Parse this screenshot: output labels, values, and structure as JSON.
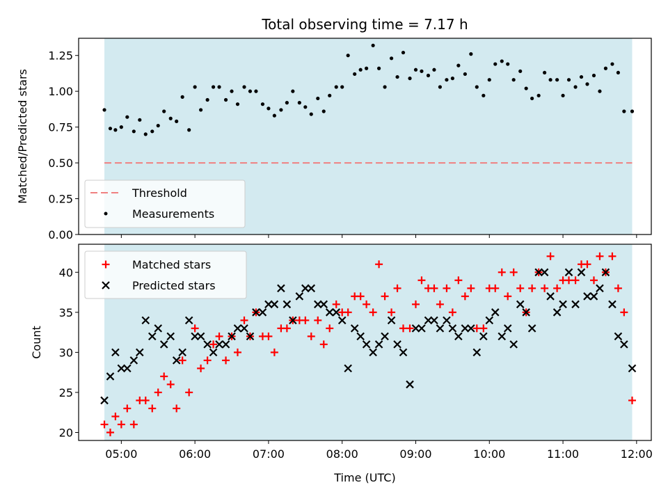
{
  "chart_data": [
    {
      "type": "scatter",
      "title": "Total observing time = 7.17 h",
      "ylabel": "Matched/Predicted stars",
      "xlabel": "",
      "ylim": [
        0,
        1.37
      ],
      "yticks": [
        "0.00",
        "0.25",
        "0.50",
        "0.75",
        "1.00",
        "1.25"
      ],
      "yticks_values": [
        0,
        0.25,
        0.5,
        0.75,
        1.0,
        1.25
      ],
      "xlim_hours": [
        4.42,
        12.2
      ],
      "shaded_span_hours": [
        4.77,
        11.94
      ],
      "shade_color": "#d3eaf0",
      "threshold": {
        "name": "Threshold",
        "value": 0.5,
        "color": "#f08080"
      },
      "legend": {
        "placement": "lower-left",
        "entries": [
          "Threshold",
          "Measurements"
        ]
      },
      "series": [
        {
          "name": "Measurements",
          "color": "#000000",
          "marker": "dot",
          "x": [
            4.77,
            4.85,
            4.92,
            5.0,
            5.08,
            5.17,
            5.25,
            5.33,
            5.42,
            5.5,
            5.58,
            5.67,
            5.75,
            5.83,
            5.92,
            6.0,
            6.08,
            6.17,
            6.25,
            6.33,
            6.42,
            6.5,
            6.58,
            6.67,
            6.75,
            6.83,
            6.92,
            7.0,
            7.08,
            7.17,
            7.25,
            7.33,
            7.42,
            7.5,
            7.58,
            7.67,
            7.75,
            7.83,
            7.92,
            8.0,
            8.08,
            8.17,
            8.25,
            8.33,
            8.42,
            8.5,
            8.58,
            8.67,
            8.75,
            8.83,
            8.92,
            9.0,
            9.08,
            9.17,
            9.25,
            9.33,
            9.42,
            9.5,
            9.58,
            9.67,
            9.75,
            9.83,
            9.92,
            10.0,
            10.08,
            10.17,
            10.25,
            10.33,
            10.42,
            10.5,
            10.58,
            10.67,
            10.75,
            10.83,
            10.92,
            11.0,
            11.08,
            11.17,
            11.25,
            11.33,
            11.42,
            11.5,
            11.58,
            11.67,
            11.75,
            11.83,
            11.94
          ],
          "y": [
            0.87,
            0.74,
            0.73,
            0.75,
            0.82,
            0.72,
            0.8,
            0.7,
            0.72,
            0.76,
            0.86,
            0.81,
            0.79,
            0.96,
            0.73,
            1.03,
            0.87,
            0.94,
            1.03,
            1.03,
            0.94,
            1.0,
            0.91,
            1.03,
            1.0,
            1.0,
            0.91,
            0.88,
            0.83,
            0.87,
            0.92,
            1.0,
            0.92,
            0.89,
            0.84,
            0.95,
            0.86,
            0.97,
            1.03,
            1.03,
            1.25,
            1.12,
            1.15,
            1.16,
            1.32,
            1.16,
            1.03,
            1.23,
            1.1,
            1.27,
            1.09,
            1.15,
            1.14,
            1.11,
            1.15,
            1.03,
            1.08,
            1.09,
            1.18,
            1.12,
            1.26,
            1.03,
            0.97,
            1.08,
            1.19,
            1.21,
            1.19,
            1.08,
            1.14,
            1.02,
            0.95,
            0.97,
            1.13,
            1.08,
            1.08,
            0.97,
            1.08,
            1.03,
            1.1,
            1.05,
            1.11,
            1.0,
            1.16,
            1.19,
            1.13,
            0.86,
            0.86
          ]
        }
      ]
    },
    {
      "type": "scatter",
      "title": "",
      "ylabel": "Count",
      "xlabel": "Time (UTC)",
      "ylim": [
        19,
        43.5
      ],
      "yticks": [
        "20",
        "25",
        "30",
        "35",
        "40"
      ],
      "yticks_values": [
        20,
        25,
        30,
        35,
        40
      ],
      "xlim_hours": [
        4.42,
        12.2
      ],
      "xticks": [
        "05:00",
        "06:00",
        "07:00",
        "08:00",
        "09:00",
        "10:00",
        "11:00",
        "12:00"
      ],
      "xticks_values": [
        5,
        6,
        7,
        8,
        9,
        10,
        11,
        12
      ],
      "shaded_span_hours": [
        4.77,
        11.94
      ],
      "shade_color": "#d3eaf0",
      "legend": {
        "placement": "upper-left",
        "entries": [
          "Matched stars",
          "Predicted stars"
        ]
      },
      "series": [
        {
          "name": "Matched stars",
          "color": "#ff0000",
          "marker": "plus",
          "x": [
            4.77,
            4.85,
            4.92,
            5.0,
            5.08,
            5.17,
            5.25,
            5.33,
            5.42,
            5.5,
            5.58,
            5.67,
            5.75,
            5.83,
            5.92,
            6.0,
            6.08,
            6.17,
            6.25,
            6.33,
            6.42,
            6.5,
            6.58,
            6.67,
            6.75,
            6.83,
            6.92,
            7.0,
            7.08,
            7.17,
            7.25,
            7.33,
            7.42,
            7.5,
            7.58,
            7.67,
            7.75,
            7.83,
            7.92,
            8.0,
            8.08,
            8.17,
            8.25,
            8.33,
            8.42,
            8.5,
            8.58,
            8.67,
            8.75,
            8.83,
            8.92,
            9.0,
            9.08,
            9.17,
            9.25,
            9.33,
            9.42,
            9.5,
            9.58,
            9.67,
            9.75,
            9.83,
            9.92,
            10.0,
            10.08,
            10.17,
            10.25,
            10.33,
            10.42,
            10.5,
            10.58,
            10.67,
            10.75,
            10.83,
            10.92,
            11.0,
            11.08,
            11.17,
            11.25,
            11.33,
            11.42,
            11.5,
            11.58,
            11.67,
            11.75,
            11.83,
            11.94
          ],
          "y": [
            21,
            20,
            22,
            21,
            23,
            21,
            24,
            24,
            23,
            25,
            27,
            26,
            23,
            29,
            25,
            33,
            28,
            29,
            31,
            32,
            29,
            32,
            30,
            34,
            32,
            35,
            32,
            32,
            30,
            33,
            33,
            34,
            34,
            34,
            32,
            34,
            31,
            33,
            36,
            35,
            35,
            37,
            37,
            36,
            35,
            41,
            37,
            35,
            38,
            33,
            33,
            36,
            39,
            38,
            38,
            36,
            38,
            35,
            39,
            37,
            38,
            33,
            33,
            38,
            38,
            40,
            37,
            40,
            38,
            35,
            38,
            40,
            38,
            42,
            38,
            39,
            39,
            39,
            41,
            41,
            39,
            42,
            40,
            42,
            38,
            35,
            24
          ]
        },
        {
          "name": "Predicted stars",
          "color": "#000000",
          "marker": "x",
          "x": [
            4.77,
            4.85,
            4.92,
            5.0,
            5.08,
            5.17,
            5.25,
            5.33,
            5.42,
            5.5,
            5.58,
            5.67,
            5.75,
            5.83,
            5.92,
            6.0,
            6.08,
            6.17,
            6.25,
            6.33,
            6.42,
            6.5,
            6.58,
            6.67,
            6.75,
            6.83,
            6.92,
            7.0,
            7.08,
            7.17,
            7.25,
            7.33,
            7.42,
            7.5,
            7.58,
            7.67,
            7.75,
            7.83,
            7.92,
            8.0,
            8.08,
            8.17,
            8.25,
            8.33,
            8.42,
            8.5,
            8.58,
            8.67,
            8.75,
            8.83,
            8.92,
            9.0,
            9.08,
            9.17,
            9.25,
            9.33,
            9.42,
            9.5,
            9.58,
            9.67,
            9.75,
            9.83,
            9.92,
            10.0,
            10.08,
            10.17,
            10.25,
            10.33,
            10.42,
            10.5,
            10.58,
            10.67,
            10.75,
            10.83,
            10.92,
            11.0,
            11.08,
            11.17,
            11.25,
            11.33,
            11.42,
            11.5,
            11.58,
            11.67,
            11.75,
            11.83,
            11.94
          ],
          "y": [
            24,
            27,
            30,
            28,
            28,
            29,
            30,
            34,
            32,
            33,
            31,
            32,
            29,
            30,
            34,
            32,
            32,
            31,
            30,
            31,
            31,
            32,
            33,
            33,
            32,
            35,
            35,
            36,
            36,
            38,
            36,
            34,
            37,
            38,
            38,
            36,
            36,
            35,
            35,
            34,
            28,
            33,
            32,
            31,
            30,
            31,
            32,
            34,
            31,
            30,
            26,
            33,
            33,
            34,
            34,
            33,
            34,
            33,
            32,
            33,
            33,
            30,
            32,
            34,
            35,
            32,
            33,
            31,
            36,
            35,
            33,
            40,
            40,
            37,
            35,
            36,
            40,
            36,
            40,
            37,
            37,
            38,
            40,
            36,
            32,
            31,
            28
          ]
        }
      ]
    }
  ]
}
